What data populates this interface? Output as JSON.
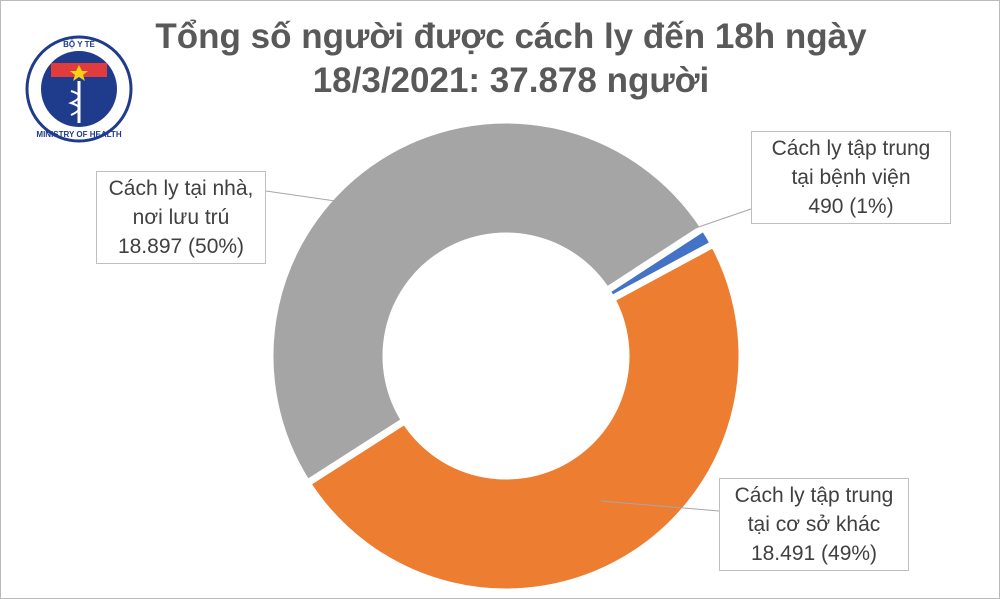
{
  "logo": {
    "top_text": "BỘ Y TẾ",
    "bottom_text": "MINISTRY OF HEALTH"
  },
  "chart_data": {
    "type": "donut",
    "title": "Tổng số người được cách ly đến 18h ngày 18/3/2021: 37.878 người",
    "categories": [
      "Cách ly tập trung tại bệnh viện",
      "Cách ly tập trung tại cơ sở khác",
      "Cách ly tại nhà, nơi lưu trú"
    ],
    "values": [
      490,
      18491,
      18897
    ],
    "value_labels": [
      "490 (1%)",
      "18.491 (49%)",
      "18.897 (50%)"
    ],
    "colors": [
      "#4472c4",
      "#ed7d31",
      "#a5a5a5"
    ]
  }
}
